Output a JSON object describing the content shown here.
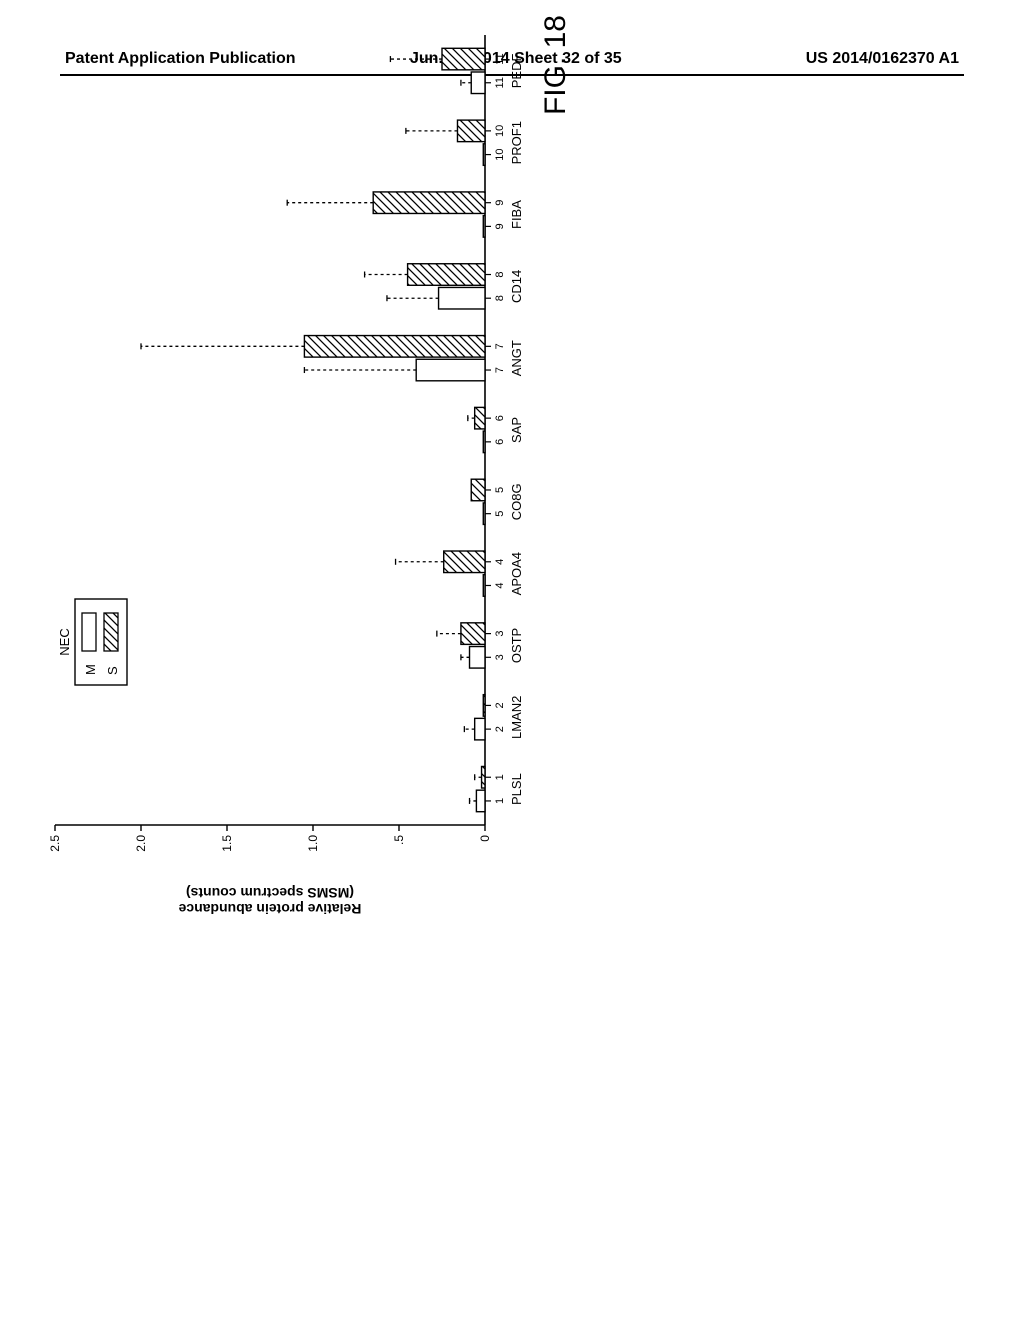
{
  "header": {
    "left": "Patent Application Publication",
    "middle": "Jun. 12, 2014  Sheet 32 of 35",
    "right": "US 2014/0162370 A1"
  },
  "figure_label": "FIG. 18",
  "chart": {
    "type": "grouped-bar-with-error",
    "orientation_on_page": "rotated-90-ccw",
    "y_axis": {
      "label": "Relative protein abundance\n(MSMS spectrum counts)",
      "min": 0,
      "max": 2.5,
      "tick_step": 0.5,
      "ticks": [
        "0",
        ".5",
        "1.0",
        "1.5",
        "2.0",
        "2.5"
      ],
      "label_fontsize": 14,
      "tick_fontsize": 12
    },
    "x_axis": {
      "label_fontsize": 12,
      "tick_pair_labels": [
        [
          "1",
          "1"
        ],
        [
          "2",
          "2"
        ],
        [
          "3",
          "3"
        ],
        [
          "4",
          "4"
        ],
        [
          "5",
          "5"
        ],
        [
          "6",
          "6"
        ],
        [
          "7",
          "7"
        ],
        [
          "8",
          "8"
        ],
        [
          "9",
          "9"
        ],
        [
          "10",
          "10"
        ],
        [
          "11",
          "11"
        ]
      ]
    },
    "legend": {
      "title": "NEC",
      "items": [
        {
          "key": "M",
          "label": "M",
          "fill": "#ffffff",
          "hatch": false
        },
        {
          "key": "S",
          "label": "S",
          "fill": "#ffffff",
          "hatch": true
        }
      ],
      "border_color": "#000000",
      "fontsize": 13
    },
    "colors": {
      "axis": "#000000",
      "bar_stroke": "#000000",
      "error_stroke": "#000000",
      "hatch_stroke": "#000000",
      "background": "#ffffff"
    },
    "bar_layout": {
      "group_width": 1.0,
      "bar_width": 0.3,
      "stroke_width": 1.4,
      "error_cap_width": 6,
      "error_line_dash": "3,3"
    },
    "categories": [
      "PLSL",
      "LMAN2",
      "OSTP",
      "APOA4",
      "CO8G",
      "SAP",
      "ANGT",
      "CD14",
      "FIBA",
      "PROF1",
      "PEDF"
    ],
    "series": {
      "M": {
        "values": [
          0.05,
          0.06,
          0.09,
          0.01,
          0.01,
          0.01,
          0.4,
          0.27,
          0.01,
          0.01,
          0.08
        ],
        "err_upper": [
          0.04,
          0.06,
          0.05,
          0.0,
          0.0,
          0.0,
          0.65,
          0.3,
          0.0,
          0.0,
          0.06
        ]
      },
      "S": {
        "values": [
          0.02,
          0.01,
          0.14,
          0.24,
          0.08,
          0.06,
          1.05,
          0.45,
          0.65,
          0.16,
          0.25
        ],
        "err_upper": [
          0.04,
          0.0,
          0.14,
          0.28,
          0.0,
          0.04,
          0.95,
          0.25,
          0.5,
          0.3,
          0.3
        ]
      }
    }
  }
}
